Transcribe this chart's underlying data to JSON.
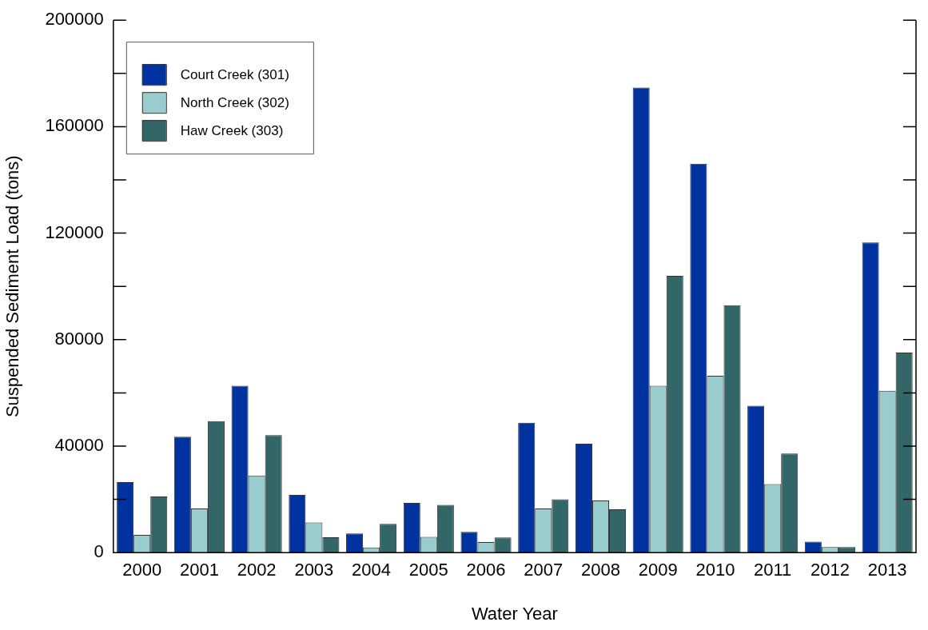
{
  "chart_data": {
    "type": "bar",
    "xlabel": "Water Year",
    "ylabel": "Suspended Sediment Load (tons)",
    "categories": [
      "2000",
      "2001",
      "2002",
      "2003",
      "2004",
      "2005",
      "2006",
      "2007",
      "2008",
      "2009",
      "2010",
      "2011",
      "2012",
      "2013"
    ],
    "series": [
      {
        "name": "Court Creek (301)",
        "color": "#0033a0",
        "values": [
          26500,
          43500,
          62700,
          21700,
          7200,
          18700,
          7800,
          48800,
          40900,
          174700,
          146100,
          55200,
          4100,
          116500
        ]
      },
      {
        "name": "North Creek (302)",
        "color": "#99cccc",
        "values": [
          6700,
          16600,
          29000,
          11300,
          1900,
          5900,
          4000,
          16600,
          19600,
          62700,
          66400,
          25700,
          2100,
          60800
        ]
      },
      {
        "name": "Haw Creek (303)",
        "color": "#336666",
        "values": [
          21100,
          49400,
          44100,
          5800,
          10800,
          17900,
          5700,
          20000,
          16300,
          104000,
          92900,
          37200,
          2100,
          75100
        ]
      }
    ],
    "ylim": [
      0,
      200000
    ],
    "yticks": [
      0,
      {
        "value": 20000,
        "label": null
      },
      40000,
      {
        "value": 60000,
        "label": null
      },
      80000,
      {
        "value": 100000,
        "label": null
      },
      120000,
      {
        "value": 140000,
        "label": null
      },
      160000,
      {
        "value": 180000,
        "label": null
      },
      200000
    ],
    "grid": false,
    "legend": "top left"
  }
}
